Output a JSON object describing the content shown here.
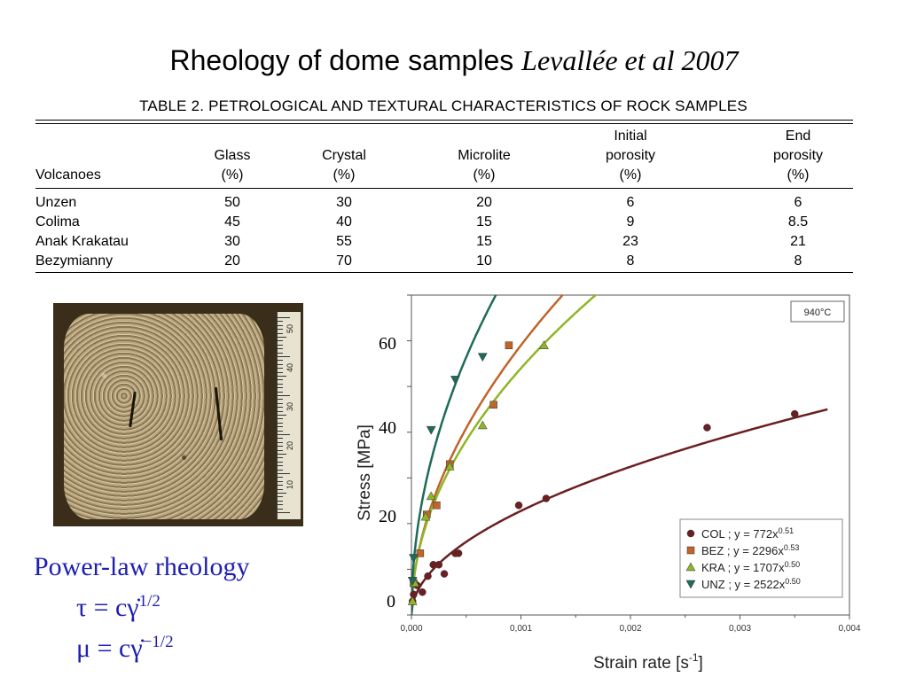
{
  "slide": {
    "title": "Rheology of dome samples",
    "reference": "Levallée et al 2007"
  },
  "table": {
    "caption": "TABLE 2. PETROLOGICAL AND TEXTURAL CHARACTERISTICS OF ROCK SAMPLES",
    "headers": [
      [
        "",
        "",
        "Volcanoes"
      ],
      [
        "",
        "Glass",
        "(%)"
      ],
      [
        "",
        "Crystal",
        "(%)"
      ],
      [
        "",
        "Microlite",
        "(%)"
      ],
      [
        "Initial",
        "porosity",
        "(%)"
      ],
      [
        "End",
        "porosity",
        "(%)"
      ]
    ],
    "rows": [
      [
        "Unzen",
        "50",
        "30",
        "20",
        "6",
        "6"
      ],
      [
        "Colima",
        "45",
        "40",
        "15",
        "9",
        "8.5"
      ],
      [
        "Anak Krakatau",
        "30",
        "55",
        "15",
        "23",
        "21"
      ],
      [
        "Bezymianny",
        "20",
        "70",
        "10",
        "8",
        "8"
      ]
    ]
  },
  "photo": {
    "ruler_labels": [
      "50",
      "40",
      "30",
      "20",
      "10"
    ]
  },
  "rheology": {
    "heading": "Power-law rheology",
    "eq1_lhs": "τ",
    "eq1_rhs": "= cγ̇",
    "eq1_exp": "1/2",
    "eq2_lhs": "μ",
    "eq2_rhs": "= cγ̇",
    "eq2_exp": "−1/2"
  },
  "overlay_ticks": [
    "60",
    "40",
    "20",
    "0"
  ],
  "chart_data": {
    "type": "scatter",
    "annotation": "940°C",
    "xlabel": "Strain rate [s",
    "xlabel_sup": "-1",
    "xlabel_end": "]",
    "ylabel": "Stress [MPa]",
    "xlim": [
      0,
      0.004
    ],
    "ylim": [
      0,
      70
    ],
    "xticks": [
      "0,000",
      "0,001",
      "0,002",
      "0,003",
      "0,004"
    ],
    "legend_position": "bottom-right",
    "series": [
      {
        "name": "COL",
        "label": "COL ; y = 772x",
        "exp_label": "0.51",
        "color": "#6b1f22",
        "marker": "circle",
        "coef": 772,
        "exp": 0.51,
        "x": [
          1e-05,
          2e-05,
          5e-05,
          0.0001,
          0.00015,
          0.0002,
          0.00025,
          0.0003,
          0.0004,
          0.00043,
          0.00098,
          0.00123,
          0.0027,
          0.0035
        ],
        "y": [
          3,
          4.5,
          6.5,
          5,
          8.5,
          11,
          11,
          9,
          13.5,
          13.5,
          24,
          25.5,
          41,
          44
        ]
      },
      {
        "name": "BEZ",
        "label": "BEZ ; y = 2296x",
        "exp_label": "0.53",
        "color": "#c0642a",
        "marker": "square",
        "coef": 2296,
        "exp": 0.53,
        "x": [
          2e-05,
          8e-05,
          0.00014,
          0.00023,
          0.00035,
          0.00075,
          0.00089
        ],
        "y": [
          7,
          13.5,
          22,
          24,
          33,
          46,
          59
        ]
      },
      {
        "name": "KRA",
        "label": "KRA ; y = 1707x",
        "exp_label": "0.50",
        "color": "#8fb528",
        "marker": "triangle",
        "coef": 1707,
        "exp": 0.5,
        "x": [
          1e-05,
          3e-05,
          0.00013,
          0.00018,
          0.00035,
          0.00065,
          0.00121
        ],
        "y": [
          3,
          7,
          21.5,
          26,
          32.5,
          41.5,
          59
        ]
      },
      {
        "name": "UNZ",
        "label": "UNZ ; y = 2522x",
        "exp_label": "0.50",
        "color": "#1e6b5a",
        "marker": "triangle-down",
        "coef": 2522,
        "exp": 0.5,
        "x": [
          1e-05,
          2e-05,
          0.00018,
          0.0004,
          0.00065
        ],
        "y": [
          7.5,
          12.5,
          40.5,
          51.5,
          56.5
        ]
      }
    ]
  }
}
